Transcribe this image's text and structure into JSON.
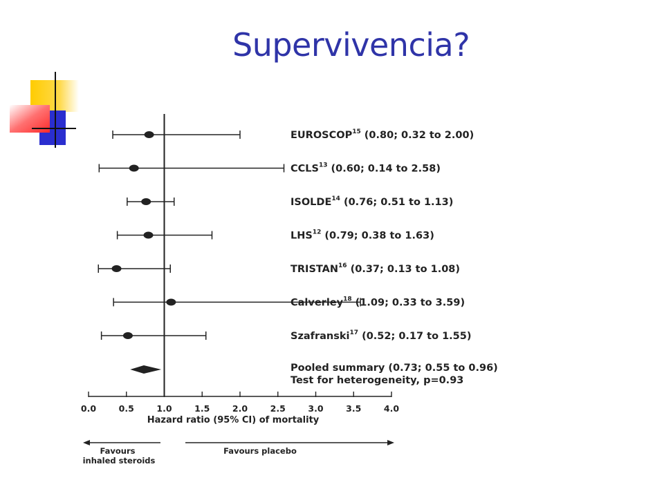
{
  "slide": {
    "title": "Supervivencia?"
  },
  "colors": {
    "title": "#2f34a8",
    "deco_yellow": "#ffcc00",
    "deco_blue": "#2a2ecf",
    "deco_red": "#ff3b3b",
    "chart_ink": "#222222"
  },
  "chart_data": {
    "type": "forest",
    "xlabel": "Hazard ratio (95% CI) of mortality",
    "xlim": [
      0,
      4
    ],
    "xticks": [
      "0.0",
      "0.5",
      "1.0",
      "1.5",
      "2.0",
      "2.5",
      "3.0",
      "3.5",
      "4.0"
    ],
    "reference_line": 1.0,
    "studies": [
      {
        "name": "EUROSCOP",
        "ref": "15",
        "rest": " (0.80; 0.32 to 2.00)",
        "estimate": 0.8,
        "lower": 0.32,
        "upper": 2.0
      },
      {
        "name": "CCLS",
        "ref": "13",
        "rest": " (0.60; 0.14 to 2.58)",
        "estimate": 0.6,
        "lower": 0.14,
        "upper": 2.58
      },
      {
        "name": "ISOLDE",
        "ref": "14",
        "rest": " (0.76; 0.51 to 1.13)",
        "estimate": 0.76,
        "lower": 0.51,
        "upper": 1.13
      },
      {
        "name": "LHS",
        "ref": "12",
        "rest": " (0.79; 0.38 to 1.63)",
        "estimate": 0.79,
        "lower": 0.38,
        "upper": 1.63
      },
      {
        "name": "TRISTAN",
        "ref": "16",
        "rest": " (0.37; 0.13 to 1.08)",
        "estimate": 0.37,
        "lower": 0.13,
        "upper": 1.08
      },
      {
        "name": "Calverley",
        "ref": "18",
        "rest": " (1.09; 0.33 to 3.59)",
        "estimate": 1.09,
        "lower": 0.33,
        "upper": 3.59
      },
      {
        "name": "Szafranski",
        "ref": "17",
        "rest": " (0.52; 0.17 to 1.55)",
        "estimate": 0.52,
        "lower": 0.17,
        "upper": 1.55
      }
    ],
    "pooled": {
      "label": "Pooled summary (0.73; 0.55 to 0.96)",
      "note": "Test for heterogeneity, p=0.93",
      "estimate": 0.73,
      "lower": 0.55,
      "upper": 0.96
    },
    "favours_left": [
      "Favours",
      "inhaled steroids"
    ],
    "favours_right": "Favours placebo"
  }
}
